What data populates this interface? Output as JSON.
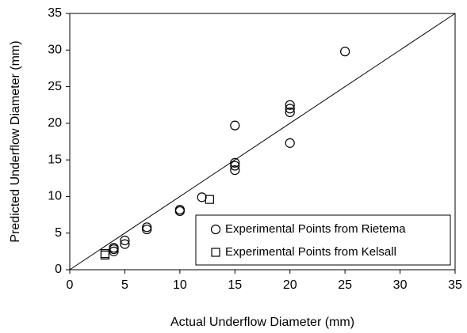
{
  "chart_data": {
    "type": "scatter",
    "x_label": "Actual Underflow Diameter (mm)",
    "y_label": "Predicted Underflow Diameter (mm)",
    "xlim": [
      0,
      35
    ],
    "ylim": [
      0,
      35
    ],
    "xticks": [
      0,
      5,
      10,
      15,
      20,
      25,
      30,
      35
    ],
    "yticks": [
      0,
      5,
      10,
      15,
      20,
      25,
      30,
      35
    ],
    "legend": "lower right",
    "series": [
      {
        "name": "Experimental Points from Rietema",
        "marker": "circle",
        "color": "#000000",
        "x": [
          4,
          4,
          4,
          5,
          5,
          7,
          7,
          10,
          10,
          12,
          15,
          15,
          15,
          15,
          20,
          20,
          20,
          20,
          25
        ],
        "values": [
          3.0,
          2.5,
          2.8,
          4.0,
          3.5,
          5.8,
          5.5,
          8.2,
          8.0,
          9.9,
          19.7,
          14.6,
          14.2,
          13.6,
          22.5,
          22.0,
          21.5,
          17.3,
          29.8
        ]
      },
      {
        "name": "Experimental Points from Kelsall",
        "marker": "square",
        "color": "#000000",
        "x": [
          3.2,
          3.2,
          12.7
        ],
        "values": [
          2.2,
          2.0,
          9.6
        ]
      }
    ]
  }
}
